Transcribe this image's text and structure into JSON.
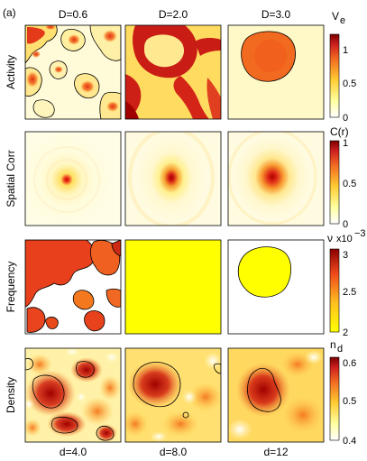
{
  "figure": {
    "panel_label": "(a)",
    "column_titles": [
      "D=0.6",
      "D=2.0",
      "D=3.0"
    ],
    "row_labels": [
      "Activity",
      "Spatial Corr",
      "Frequency",
      "Density"
    ],
    "bottom_labels": [
      "d=4.0",
      "d=8.0",
      "d=12"
    ]
  },
  "colorbars": [
    {
      "symbol": "V",
      "sub": "e",
      "ticks": [
        "1",
        "0.5",
        "0"
      ],
      "values": [
        1,
        0.5,
        0
      ]
    },
    {
      "symbol": "C(r)",
      "sub": "",
      "ticks": [
        "1",
        "0.5",
        "0"
      ],
      "values": [
        1,
        0.5,
        0
      ]
    },
    {
      "symbol": "ν",
      "sub": "",
      "exponent_label": "x10",
      "exponent_power": "−3",
      "ticks": [
        "3",
        "2.5",
        "2"
      ],
      "values": [
        3,
        2.5,
        2
      ]
    },
    {
      "symbol": "n",
      "sub": "d",
      "ticks": [
        "0.6",
        "0.5",
        "0.4"
      ],
      "values": [
        0.6,
        0.5,
        0.4
      ]
    }
  ],
  "colors": {
    "dark_red": "#8b0000",
    "red": "#d7301f",
    "orange": "#f46d2c",
    "yellow": "#ffff00",
    "pale_yellow": "#fffbd0",
    "white": "#ffffff"
  }
}
